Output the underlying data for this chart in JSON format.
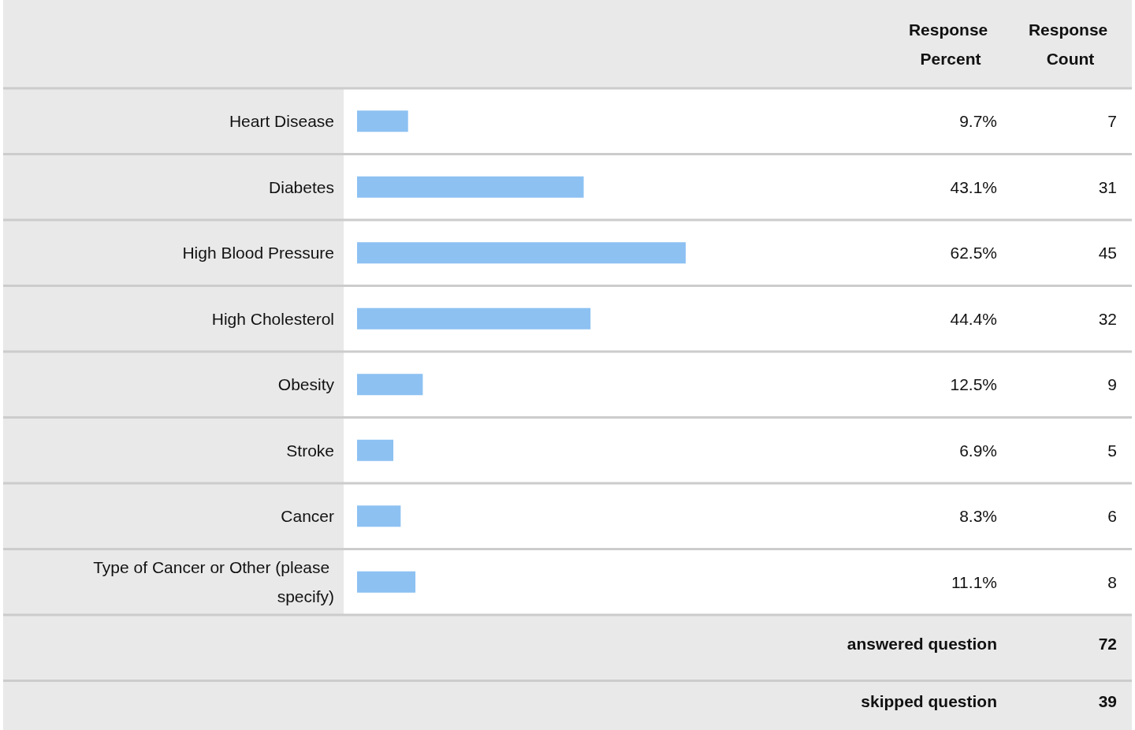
{
  "chart_data": {
    "type": "bar",
    "orientation": "horizontal",
    "categories": [
      "Heart Disease",
      "Diabetes",
      "High Blood Pressure",
      "High Cholesterol",
      "Obesity",
      "Stroke",
      "Cancer",
      "Type of Cancer or Other (please specify)"
    ],
    "values": [
      9.7,
      43.1,
      62.5,
      44.4,
      12.5,
      6.9,
      8.3,
      11.1
    ],
    "value_labels": [
      "9.7%",
      "43.1%",
      "62.5%",
      "44.4%",
      "12.5%",
      "6.9%",
      "8.3%",
      "11.1%"
    ],
    "color": "#8dc1f2",
    "tick_labels": "y",
    "annotations": [
      "Response Percent",
      "Response Count",
      "7",
      "31",
      "45",
      "32",
      "9",
      "5",
      "6",
      "8",
      "answered question",
      "72",
      "skipped question",
      "39"
    ]
  }
}
